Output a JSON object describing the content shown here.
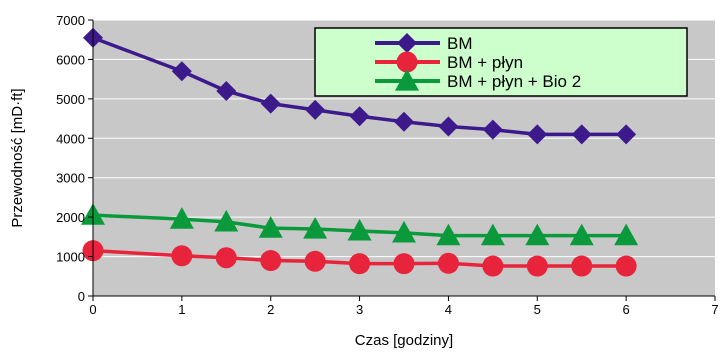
{
  "chart_data": {
    "type": "line",
    "title": "",
    "xlabel": "Czas [godziny]",
    "ylabel": "Przewodność [mD·ft]",
    "xlim": [
      0,
      7
    ],
    "ylim": [
      0,
      7000
    ],
    "x_ticks": [
      "0",
      "1",
      "2",
      "3",
      "4",
      "5",
      "6",
      "7"
    ],
    "y_ticks": [
      "0",
      "1000",
      "2000",
      "3000",
      "4000",
      "5000",
      "6000",
      "7000"
    ],
    "grid": "horizontal",
    "plot_background": "#c8c8c8",
    "legend_position": "top-right",
    "legend_background": "#ccffcc",
    "series": [
      {
        "name": "BM",
        "color": "#3d1a8c",
        "marker": "diamond",
        "x": [
          0,
          1,
          1.5,
          2,
          2.5,
          3,
          3.5,
          4,
          4.5,
          5,
          5.5,
          6
        ],
        "y": [
          6550,
          5700,
          5200,
          4880,
          4720,
          4560,
          4420,
          4300,
          4220,
          4100,
          4100,
          4100
        ]
      },
      {
        "name": "BM + płyn",
        "color": "#e8243c",
        "marker": "circle",
        "x": [
          0,
          1,
          1.5,
          2,
          2.5,
          3,
          3.5,
          4,
          4.5,
          5,
          5.5,
          6
        ],
        "y": [
          1150,
          1020,
          970,
          900,
          880,
          820,
          820,
          830,
          760,
          760,
          760,
          760
        ]
      },
      {
        "name": "BM + płyn + Bio 2",
        "color": "#0a9a3c",
        "marker": "triangle",
        "x": [
          0,
          1,
          1.5,
          2,
          2.5,
          3,
          3.5,
          4,
          4.5,
          5,
          5.5,
          6
        ],
        "y": [
          2050,
          1950,
          1880,
          1720,
          1700,
          1650,
          1600,
          1530,
          1530,
          1530,
          1530,
          1530
        ]
      }
    ]
  }
}
